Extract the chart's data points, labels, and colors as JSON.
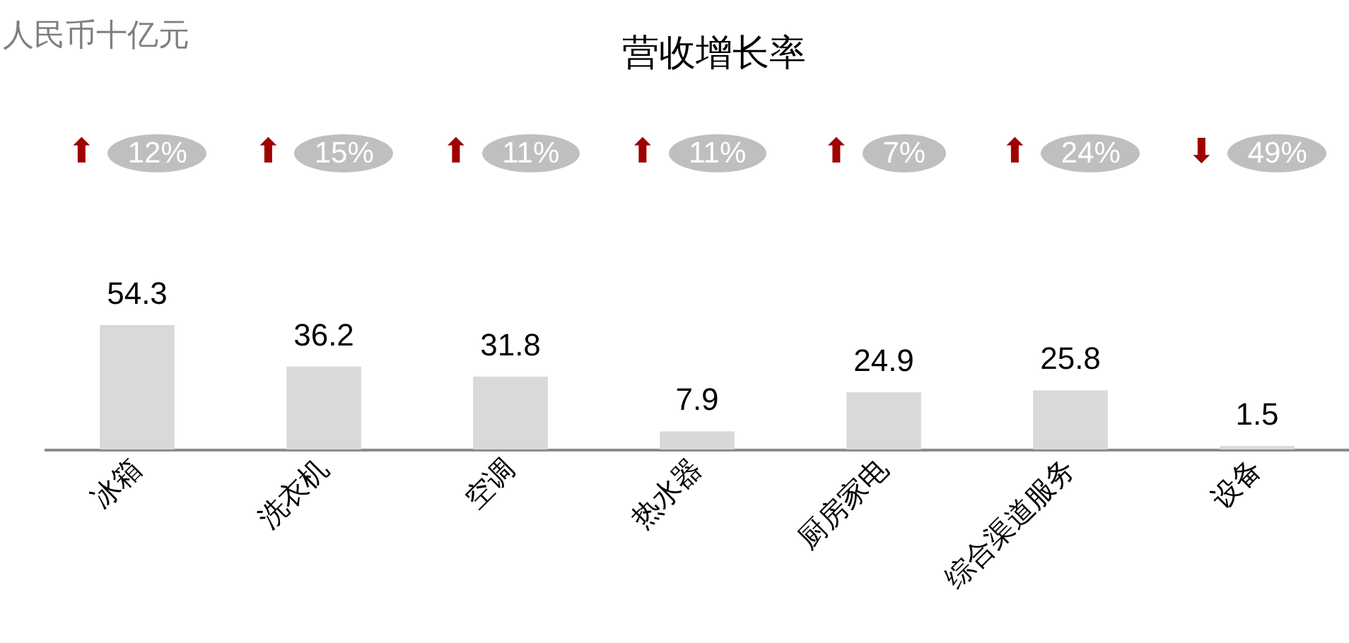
{
  "chart_data": {
    "type": "bar",
    "title": "营收增长率",
    "categories": [
      "冰箱",
      "洗衣机",
      "空调",
      "热水器",
      "厨房家电",
      "综合渠道服务",
      "设备"
    ],
    "values": [
      54.3,
      36.2,
      31.8,
      7.9,
      24.9,
      25.8,
      1.5
    ],
    "color": "#d9d9d9",
    "data_labels": true,
    "annotations": [
      "人民币十亿元",
      "⬆ 12%",
      "⬆ 15%",
      "⬆ 11%",
      "⬆ 11%",
      "⬆ 7%",
      "⬆ 24%",
      "⬇ 49%"
    ]
  }
}
